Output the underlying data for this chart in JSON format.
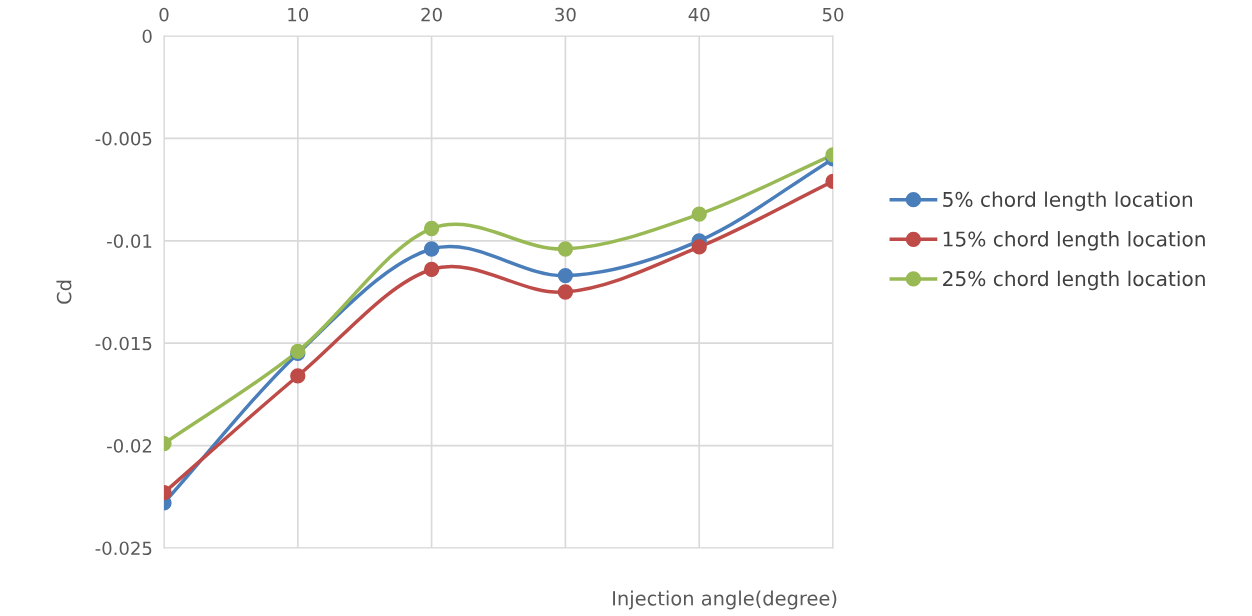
{
  "chart_data": {
    "type": "line",
    "xlabel": "Injection angle(degree)",
    "ylabel": "Cd",
    "x": [
      0,
      10,
      20,
      30,
      40,
      50
    ],
    "series": [
      {
        "name": "5% chord length location",
        "color": "#4a7ebb",
        "values": [
          -0.0228,
          -0.0155,
          -0.0104,
          -0.0117,
          -0.01,
          -0.006
        ]
      },
      {
        "name": "15% chord length location",
        "color": "#be4b48",
        "values": [
          -0.0223,
          -0.0166,
          -0.0114,
          -0.0125,
          -0.0103,
          -0.0071
        ]
      },
      {
        "name": "25% chord length location",
        "color": "#98b954",
        "values": [
          -0.0199,
          -0.0154,
          -0.0094,
          -0.0104,
          -0.0087,
          -0.0058
        ]
      }
    ],
    "xlim": [
      0,
      50
    ],
    "xticks": [
      0,
      10,
      20,
      30,
      40,
      50
    ],
    "ylim": [
      -0.025,
      0
    ],
    "yticks": [
      0,
      -0.005,
      -0.01,
      -0.015,
      -0.02,
      -0.025
    ],
    "grid": true,
    "legend": "right",
    "marker": "circle",
    "line_style": "solid"
  }
}
